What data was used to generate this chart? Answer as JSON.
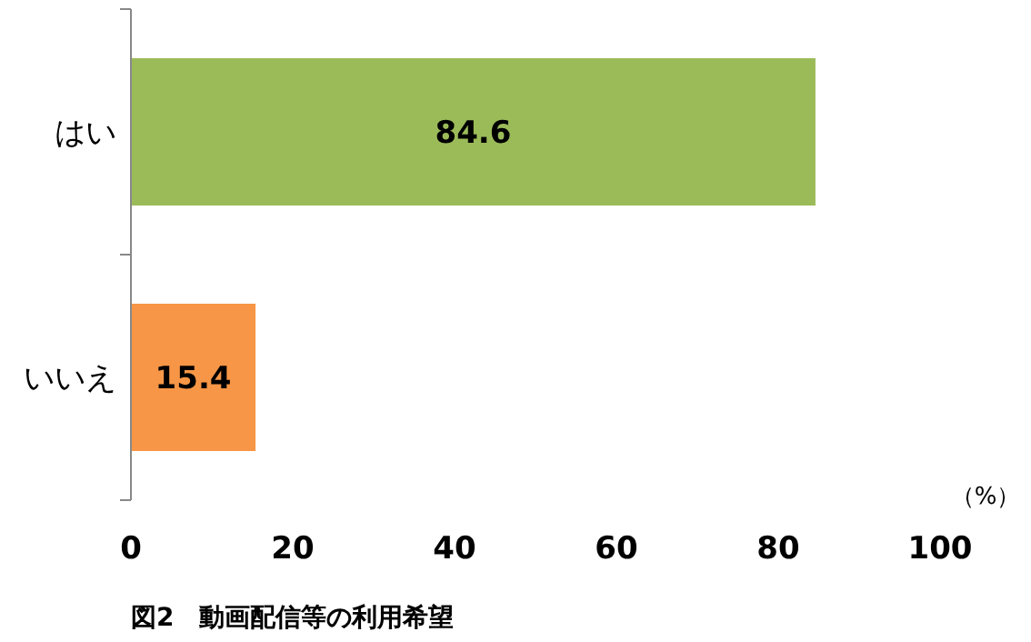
{
  "chart_data": {
    "type": "bar",
    "orientation": "horizontal",
    "categories": [
      "はい",
      "いいえ"
    ],
    "values": [
      84.6,
      15.4
    ],
    "colors": [
      "#9bbb59",
      "#f79646"
    ],
    "xlim": [
      0,
      100
    ],
    "xticks": [
      0,
      20,
      40,
      60,
      80,
      100
    ],
    "xlabel": "（%）",
    "data_labels": true,
    "grid": false,
    "annotations": [
      "図2　動画配信等の利用希望"
    ]
  }
}
